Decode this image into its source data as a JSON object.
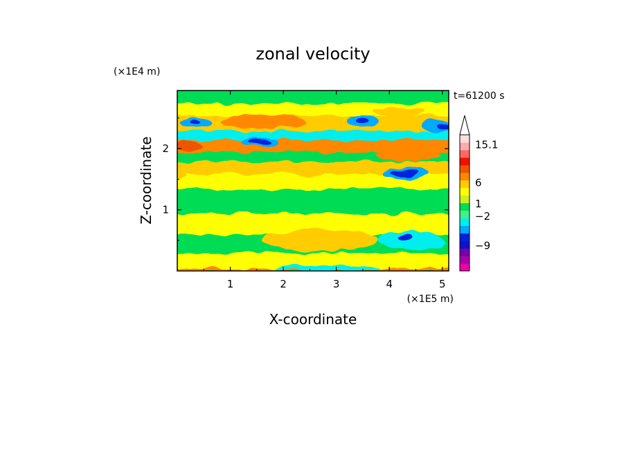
{
  "chart_data": {
    "type": "heatmap",
    "title": "zonal velocity",
    "xlabel": "X-coordinate",
    "ylabel": "Z-coordinate",
    "x_unit": "(×1E5 m)",
    "y_unit": "(×1E4 m)",
    "time_label": "t=61200 s",
    "xlim": [
      0,
      5.12
    ],
    "ylim": [
      0,
      2.95
    ],
    "x_ticks": [
      1,
      2,
      3,
      4,
      5
    ],
    "y_ticks": [
      1,
      2
    ],
    "colorbar": {
      "levels_colors": [
        "#ee00aa",
        "#aa00aa",
        "#7700aa",
        "#1111cc",
        "#0022dd",
        "#00aaff",
        "#00eeee",
        "#44ee88",
        "#00dd55",
        "#ccee22",
        "#ffff00",
        "#ffcc00",
        "#ff8800",
        "#ee5500",
        "#ee1100",
        "#ff6666",
        "#ffaaaa",
        "#ffdddd"
      ],
      "labels": [
        {
          "text": "15.1",
          "value": 15.1
        },
        {
          "text": "6",
          "value": 6
        },
        {
          "text": "1",
          "value": 1
        },
        {
          "text": "−2",
          "value": -2
        },
        {
          "text": "−9",
          "value": -9
        }
      ]
    },
    "field_bands": [
      {
        "z": [
          0.0,
          0.05
        ],
        "color": "#ff8800"
      },
      {
        "z": [
          0.05,
          0.3
        ],
        "color": "#ffff00"
      },
      {
        "z": [
          0.3,
          0.6
        ],
        "color": "#00dd55"
      },
      {
        "z": [
          0.6,
          0.95
        ],
        "color": "#ffff00"
      },
      {
        "z": [
          0.95,
          1.35
        ],
        "color": "#00dd55"
      },
      {
        "z": [
          1.35,
          1.6
        ],
        "color": "#ffff00"
      },
      {
        "z": [
          1.6,
          1.8
        ],
        "color": "#ffcc00"
      },
      {
        "z": [
          1.8,
          1.95
        ],
        "color": "#00dd55"
      },
      {
        "z": [
          1.95,
          2.15
        ],
        "color": "#ff8800"
      },
      {
        "z": [
          2.15,
          2.3
        ],
        "color": "#00eeee"
      },
      {
        "z": [
          2.3,
          2.55
        ],
        "color": "#ffcc00"
      },
      {
        "z": [
          2.55,
          2.75
        ],
        "color": "#ffff00"
      },
      {
        "z": [
          2.75,
          2.95
        ],
        "color": "#00dd55"
      }
    ],
    "field_patches": [
      {
        "x": 0.35,
        "z": 2.42,
        "rx": 0.3,
        "rz": 0.08,
        "color": "#00aaff"
      },
      {
        "x": 0.35,
        "z": 2.42,
        "rx": 0.09,
        "rz": 0.035,
        "color": "#0022dd"
      },
      {
        "x": 1.6,
        "z": 2.45,
        "rx": 0.8,
        "rz": 0.12,
        "color": "#ff8800"
      },
      {
        "x": 1.55,
        "z": 2.11,
        "rx": 0.35,
        "rz": 0.08,
        "color": "#00aaff"
      },
      {
        "x": 1.55,
        "z": 2.11,
        "rx": 0.2,
        "rz": 0.05,
        "color": "#0022dd"
      },
      {
        "x": 3.5,
        "z": 2.45,
        "rx": 0.3,
        "rz": 0.1,
        "color": "#00aaff"
      },
      {
        "x": 3.5,
        "z": 2.45,
        "rx": 0.12,
        "rz": 0.05,
        "color": "#0022dd"
      },
      {
        "x": 4.9,
        "z": 2.38,
        "rx": 0.3,
        "rz": 0.1,
        "color": "#00aaff"
      },
      {
        "x": 5.0,
        "z": 2.38,
        "rx": 0.12,
        "rz": 0.05,
        "color": "#0022dd"
      },
      {
        "x": 4.3,
        "z": 1.6,
        "rx": 0.45,
        "rz": 0.1,
        "color": "#00aaff"
      },
      {
        "x": 4.3,
        "z": 1.6,
        "rx": 0.28,
        "rz": 0.06,
        "color": "#0022dd"
      },
      {
        "x": 4.35,
        "z": 1.9,
        "rx": 0.6,
        "rz": 0.1,
        "color": "#ff8800"
      },
      {
        "x": 2.6,
        "z": 1.65,
        "rx": 0.6,
        "rz": 0.1,
        "color": "#ffcc00"
      },
      {
        "x": 4.4,
        "z": 0.5,
        "rx": 0.6,
        "rz": 0.15,
        "color": "#00eeee"
      },
      {
        "x": 4.3,
        "z": 0.55,
        "rx": 0.15,
        "rz": 0.05,
        "color": "#0022dd"
      },
      {
        "x": 2.7,
        "z": 0.5,
        "rx": 1.1,
        "rz": 0.18,
        "color": "#ffcc00"
      },
      {
        "x": 4.1,
        "z": 1.1,
        "rx": 0.25,
        "rz": 0.2,
        "color": "#00dd55"
      },
      {
        "x": 0.2,
        "z": 2.05,
        "rx": 0.25,
        "rz": 0.08,
        "color": "#ee5500"
      },
      {
        "x": 4.2,
        "z": 2.6,
        "rx": 0.5,
        "rz": 0.07,
        "color": "#ffcc00"
      },
      {
        "x": 0.1,
        "z": 1.55,
        "rx": 0.1,
        "rz": 0.06,
        "color": "#ffcc00"
      },
      {
        "x": 2.8,
        "z": 0.05,
        "rx": 1.0,
        "rz": 0.05,
        "color": "#00eeee"
      }
    ]
  }
}
